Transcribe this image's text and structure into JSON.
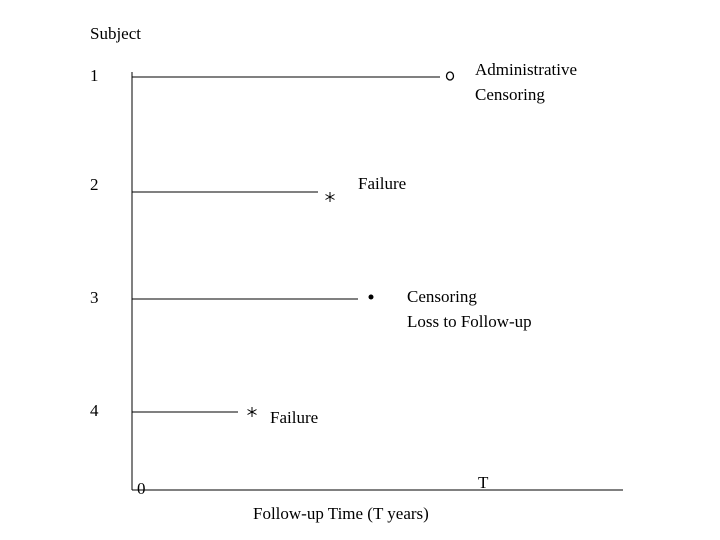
{
  "header": {
    "title": "Subject"
  },
  "subjects": [
    {
      "id": "1",
      "label": [
        "Administrative",
        "Censoring"
      ]
    },
    {
      "id": "2",
      "label": [
        "Failure"
      ]
    },
    {
      "id": "3",
      "label": [
        "Censoring",
        "Loss to Follow-up"
      ]
    },
    {
      "id": "4",
      "label": [
        "Failure"
      ]
    }
  ],
  "axis": {
    "origin": "0",
    "end": "T",
    "title": "Follow-up Time (T years)"
  }
}
